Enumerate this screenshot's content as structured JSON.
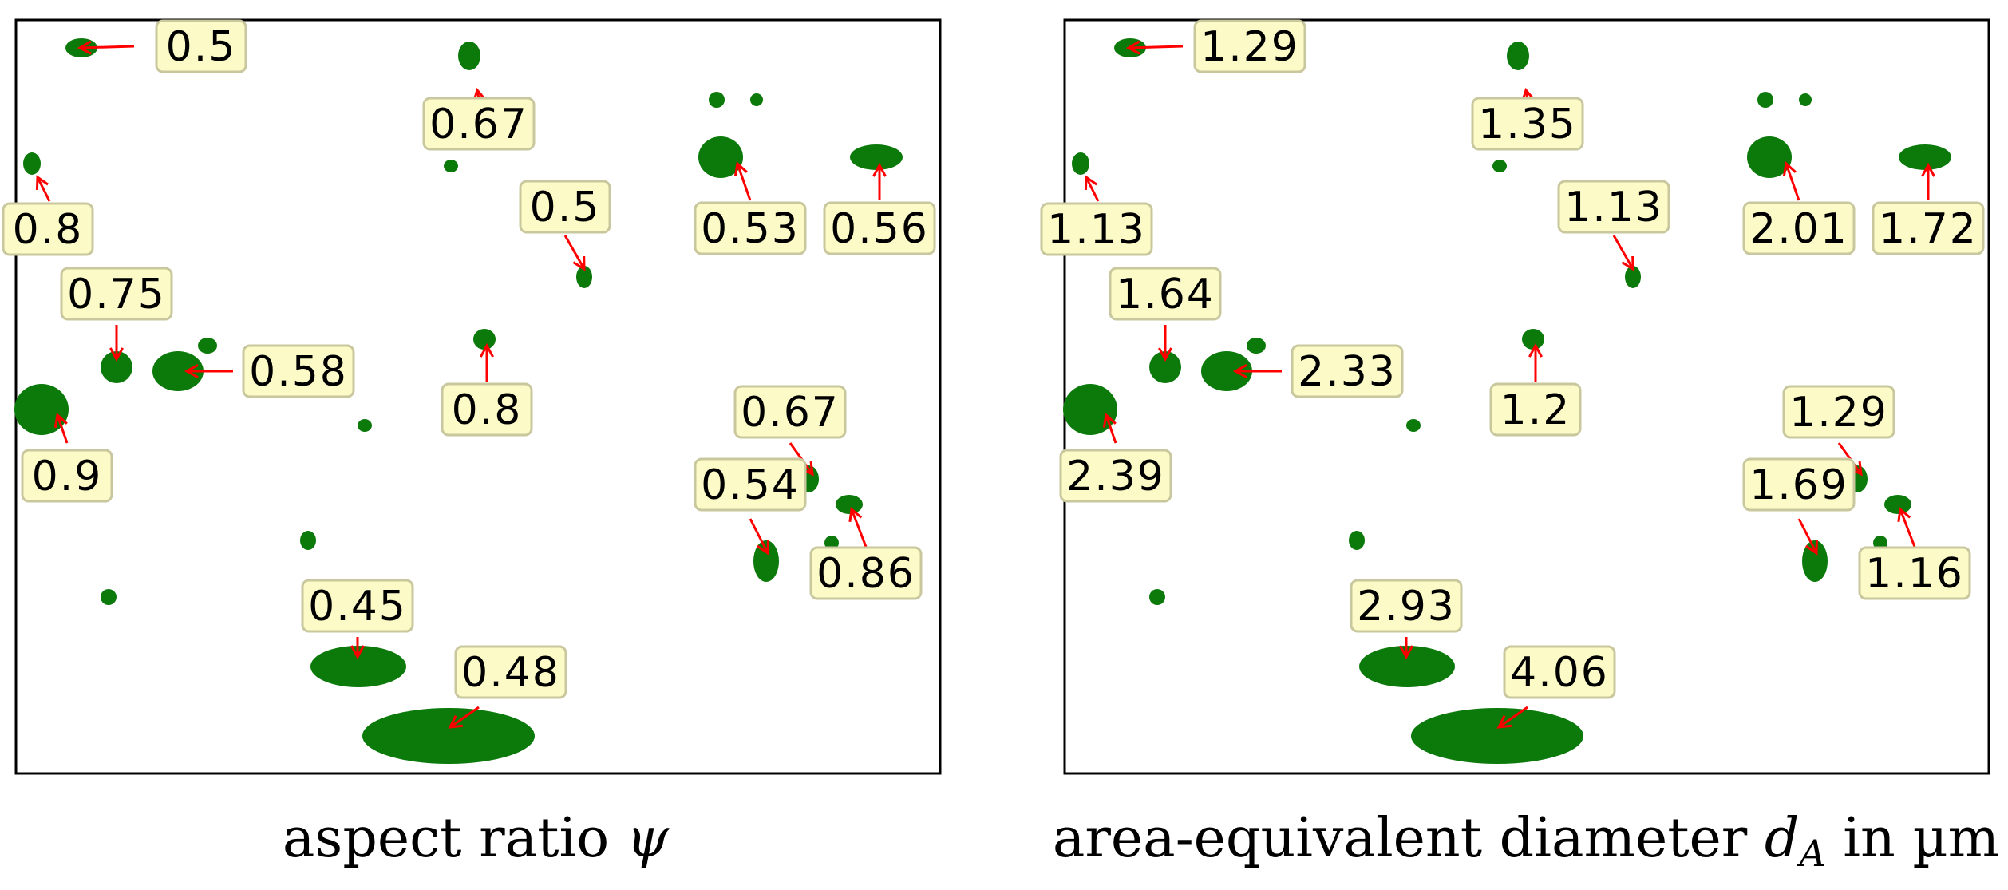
{
  "panels": [
    {
      "id": "left",
      "caption": {
        "text": "aspect ratio ",
        "symbol": "ψ",
        "suffix": ""
      },
      "labels": [
        "0.5",
        "0.67",
        "0.8",
        "0.5",
        "0.53",
        "0.56",
        "0.75",
        "0.58",
        "0.8",
        "0.9",
        "0.67",
        "0.54",
        "0.86",
        "0.45",
        "0.48"
      ]
    },
    {
      "id": "right",
      "caption": {
        "text": "area-equivalent diameter ",
        "symbol": "d",
        "subscript": "A",
        "suffix": " in µm"
      },
      "labels": [
        "1.29",
        "1.35",
        "1.13",
        "1.13",
        "2.01",
        "1.72",
        "1.64",
        "2.33",
        "1.2",
        "2.39",
        "1.29",
        "1.69",
        "1.16",
        "2.93",
        "4.06"
      ]
    }
  ],
  "colors": {
    "particle": "#0b7a0b",
    "arrow": "#ff0000",
    "label_bg": "#fcfbc8",
    "label_border": "#c9c79d"
  }
}
